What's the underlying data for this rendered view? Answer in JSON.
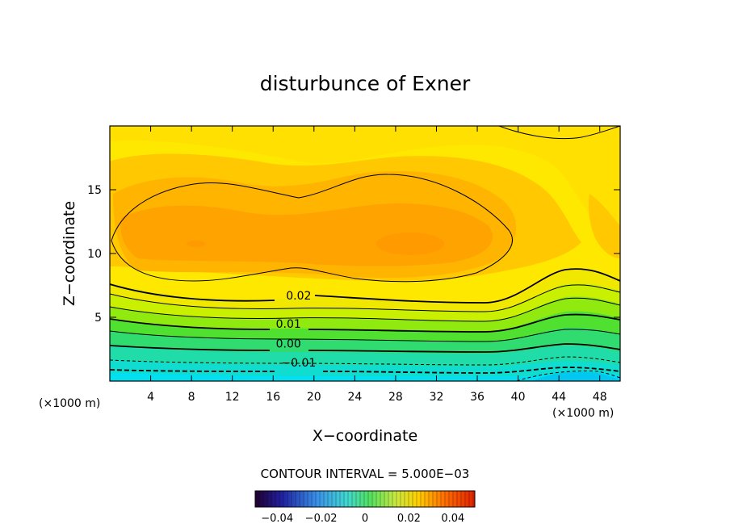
{
  "chart_data": {
    "type": "contour",
    "title": "disturbunce of Exner",
    "xlabel": "X−coordinate",
    "ylabel": "Z−coordinate",
    "x_unit": "(×1000 m)",
    "y_unit": "(×1000 m)",
    "xlim": [
      0,
      50
    ],
    "ylim": [
      0,
      20
    ],
    "x_ticks": [
      4,
      8,
      12,
      16,
      20,
      24,
      28,
      32,
      36,
      40,
      44,
      48
    ],
    "y_ticks": [
      5,
      10,
      15
    ],
    "contour_interval_text": "CONTOUR INTERVAL = 5.000E−03",
    "contour_labels": [
      {
        "text": "0.02",
        "x": 18.5,
        "y": 6.7
      },
      {
        "text": "0.01",
        "x": 17.5,
        "y": 4.5
      },
      {
        "text": "0.00",
        "x": 17.5,
        "y": 2.95
      },
      {
        "text": "−0.01",
        "x": 18.5,
        "y": 1.45
      }
    ],
    "colorbar": {
      "range": [
        -0.05,
        0.05
      ],
      "ticks": [
        "−0.04",
        "−0.02",
        "0",
        "0.02",
        "0.04"
      ],
      "tick_values": [
        -0.04,
        -0.02,
        0,
        0.02,
        0.04
      ]
    },
    "colors": {
      "field_high": "#ff9a00",
      "field_mid": "#ffe200",
      "field_low": "#00e0f0"
    }
  }
}
